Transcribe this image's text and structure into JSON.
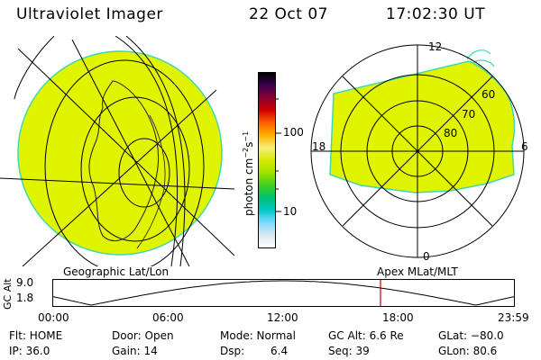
{
  "header": {
    "instrument": "Ultraviolet Imager",
    "date": "22 Oct 07",
    "time": "17:02:30 UT"
  },
  "left_panel": {
    "projection_label": "Geographic Lat/Lon"
  },
  "colorbar": {
    "unit_label": "photon cm",
    "unit_exp1": "−2",
    "unit_mid": "s",
    "unit_exp2": "−1",
    "tick_100": "100",
    "tick_10": "10",
    "stops": [
      "#000000",
      "#3a0050",
      "#8a0030",
      "#d00000",
      "#ff6000",
      "#ffb000",
      "#f5f07a",
      "#d8e800",
      "#a0e000",
      "#40d020",
      "#00c070",
      "#00c8c8",
      "#80d8ff",
      "#d8e8f0",
      "#ffffff"
    ]
  },
  "right_panel": {
    "projection_label": "Apex MLat/MLT",
    "mlt_top": "12",
    "mlt_bottom": "0",
    "mlt_left": "18",
    "mlt_right": "6",
    "lat_60": "60",
    "lat_70": "70",
    "lat_80": "80"
  },
  "timeline": {
    "axis_label": "GC Alt",
    "alt_max": "9.0",
    "alt_min": "1.8",
    "ticks": [
      "00:00",
      "06:00",
      "12:00",
      "18:00",
      "23:59"
    ],
    "current_time_hours": 17.04
  },
  "footer": {
    "flt": "Flt: HOME",
    "ip": "IP: 36.0",
    "door": "Door: Open",
    "gain": "Gain: 14",
    "mode": "Mode: Normal",
    "dsp_label": "Dsp:",
    "dsp_value": "6.4",
    "gc_alt": "GC Alt: 6.6 Re",
    "seq": "Seq: 39",
    "glat": "GLat: −80.0",
    "glon": "GLon:  80.6"
  },
  "colors": {
    "image_fill": "#e0f400",
    "image_edge": "#40d8b0",
    "marker": "#c00000"
  }
}
